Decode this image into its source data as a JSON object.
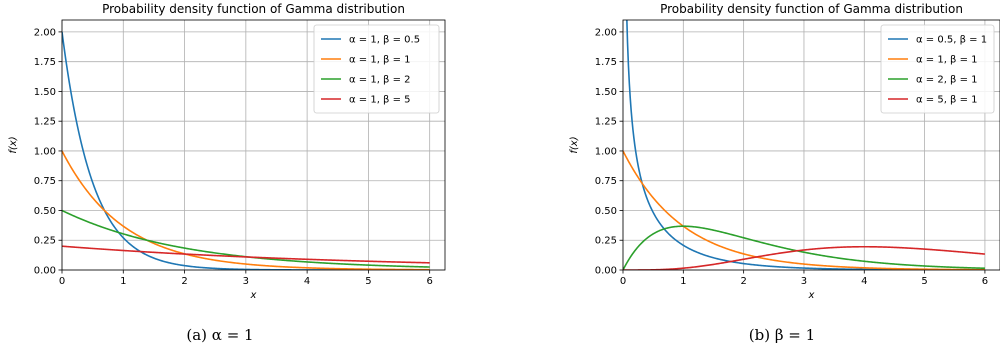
{
  "chart_data": [
    {
      "type": "line",
      "title": "Probability density function of Gamma distribution",
      "xlabel": "x",
      "ylabel": "f(x)",
      "xlim": [
        0,
        6.25
      ],
      "ylim": [
        0,
        2.1
      ],
      "xticks": [
        "0",
        "1",
        "2",
        "3",
        "4",
        "5",
        "6"
      ],
      "yticks": [
        "0.00",
        "0.25",
        "0.50",
        "0.75",
        "1.00",
        "1.25",
        "1.50",
        "1.75",
        "2.00"
      ],
      "grid": true,
      "legend_position": "top-right",
      "caption": "(a) α = 1",
      "series": [
        {
          "name": "α = 1, β = 0.5",
          "color": "#1f77b4",
          "alpha": 1,
          "beta": 0.5,
          "x": [
            0,
            0.5,
            1,
            1.5,
            2,
            3,
            4,
            5,
            6
          ],
          "y": [
            2.0,
            0.736,
            0.271,
            0.1,
            0.037,
            0.005,
            0.001,
            0.0,
            0.0
          ]
        },
        {
          "name": "α = 1, β = 1",
          "color": "#ff7f0e",
          "alpha": 1,
          "beta": 1,
          "x": [
            0,
            0.5,
            1,
            1.5,
            2,
            3,
            4,
            5,
            6
          ],
          "y": [
            1.0,
            0.607,
            0.368,
            0.223,
            0.135,
            0.05,
            0.018,
            0.007,
            0.002
          ]
        },
        {
          "name": "α = 1, β = 2",
          "color": "#2ca02c",
          "alpha": 1,
          "beta": 2,
          "x": [
            0,
            1,
            2,
            3,
            4,
            5,
            6
          ],
          "y": [
            0.5,
            0.303,
            0.184,
            0.112,
            0.068,
            0.041,
            0.025
          ]
        },
        {
          "name": "α = 1, β = 5",
          "color": "#d62728",
          "alpha": 1,
          "beta": 5,
          "x": [
            0,
            1,
            2,
            3,
            4,
            5,
            6
          ],
          "y": [
            0.2,
            0.164,
            0.134,
            0.11,
            0.09,
            0.074,
            0.06
          ]
        }
      ]
    },
    {
      "type": "line",
      "title": "Probability density function of Gamma distribution",
      "xlabel": "x",
      "ylabel": "f(x)",
      "xlim": [
        0,
        6.25
      ],
      "ylim": [
        0,
        2.1
      ],
      "xticks": [
        "0",
        "1",
        "2",
        "3",
        "4",
        "5",
        "6"
      ],
      "yticks": [
        "0.00",
        "0.25",
        "0.50",
        "0.75",
        "1.00",
        "1.25",
        "1.50",
        "1.75",
        "2.00"
      ],
      "grid": true,
      "legend_position": "top-right",
      "caption": "(b) β = 1",
      "series": [
        {
          "name": "α = 0.5, β = 1",
          "color": "#1f77b4",
          "alpha": 0.5,
          "beta": 1,
          "x": [
            0.05,
            0.25,
            0.5,
            1,
            1.5,
            2,
            3,
            4,
            5,
            6
          ],
          "y": [
            2.46,
            0.88,
            0.48,
            0.21,
            0.1,
            0.05,
            0.016,
            0.005,
            0.002,
            0.001
          ]
        },
        {
          "name": "α = 1, β = 1",
          "color": "#ff7f0e",
          "alpha": 1,
          "beta": 1,
          "x": [
            0,
            0.5,
            1,
            1.5,
            2,
            3,
            4,
            5,
            6
          ],
          "y": [
            1.0,
            0.607,
            0.368,
            0.223,
            0.135,
            0.05,
            0.018,
            0.007,
            0.002
          ]
        },
        {
          "name": "α = 2, β = 1",
          "color": "#2ca02c",
          "alpha": 2,
          "beta": 1,
          "x": [
            0,
            0.5,
            1,
            1.5,
            2,
            3,
            4,
            5,
            6
          ],
          "y": [
            0.0,
            0.303,
            0.368,
            0.335,
            0.271,
            0.149,
            0.073,
            0.034,
            0.015
          ]
        },
        {
          "name": "α = 5, β = 1",
          "color": "#d62728",
          "alpha": 5,
          "beta": 1,
          "x": [
            0,
            1,
            2,
            3,
            4,
            5,
            6
          ],
          "y": [
            0.0,
            0.015,
            0.09,
            0.168,
            0.195,
            0.175,
            0.134
          ]
        }
      ]
    }
  ]
}
